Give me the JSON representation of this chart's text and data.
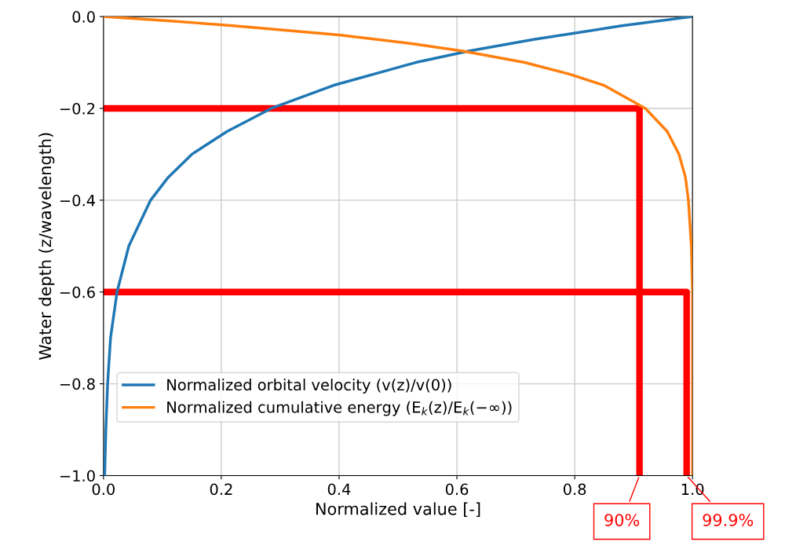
{
  "chart_data": {
    "type": "line",
    "xlabel": "Normalized value [-]",
    "ylabel": "Water depth (z/wavelength)",
    "xlim": [
      0.0,
      1.0
    ],
    "ylim": [
      -1.0,
      0.0
    ],
    "xticks": [
      {
        "value": 0,
        "label": "0.0"
      },
      {
        "value": 0.2,
        "label": "0.2"
      },
      {
        "value": 0.4,
        "label": "0.4"
      },
      {
        "value": 0.6,
        "label": "0.6"
      },
      {
        "value": 0.8,
        "label": "0.8"
      },
      {
        "value": 1,
        "label": "1.0"
      }
    ],
    "yticks": [
      {
        "value": -1,
        "label": "−1.0"
      },
      {
        "value": -0.8,
        "label": "−0.8"
      },
      {
        "value": -0.6,
        "label": "−0.6"
      },
      {
        "value": -0.4,
        "label": "−0.4"
      },
      {
        "value": -0.2,
        "label": "−0.2"
      },
      {
        "value": 0,
        "label": "0.0"
      }
    ],
    "grid": true,
    "legend": "bottom left",
    "line_style": "solid",
    "series": [
      {
        "name": "Normalized orbital velocity (v(z)/v(0))",
        "color": "#1f77b4",
        "x": [
          1.0,
          0.88,
          0.73,
          0.62,
          0.53,
          0.39,
          0.285,
          0.21,
          0.15,
          0.11,
          0.08,
          0.043,
          0.023,
          0.012,
          0.007,
          0.004,
          0.002
        ],
        "values": [
          0.0,
          -0.02,
          -0.05,
          -0.075,
          -0.1,
          -0.15,
          -0.2,
          -0.25,
          -0.3,
          -0.35,
          -0.4,
          -0.5,
          -0.6,
          -0.7,
          -0.8,
          -0.9,
          -1.0
        ]
      },
      {
        "name": "Normalized cumulative energy (E$_{k}$(z)/E$_{k}$(−∞))",
        "color": "#ff7f0e",
        "x": [
          0.0,
          0.12,
          0.22,
          0.4,
          0.53,
          0.61,
          0.715,
          0.79,
          0.85,
          0.92,
          0.957,
          0.977,
          0.988,
          0.993,
          0.998,
          1.0,
          1.0
        ],
        "values": [
          0.0,
          -0.01,
          -0.02,
          -0.04,
          -0.06,
          -0.075,
          -0.1,
          -0.125,
          -0.15,
          -0.2,
          -0.25,
          -0.3,
          -0.35,
          -0.4,
          -0.5,
          -0.6,
          -1.0
        ]
      },
      {
        "color": "#ff0000",
        "x": [
          0.0,
          0.91,
          0.91
        ],
        "values": [
          -0.2,
          -0.2,
          -1.0
        ]
      },
      {
        "color": "#ff0000",
        "x": [
          0.0,
          0.99,
          0.99
        ],
        "values": [
          -0.6,
          -0.6,
          -1.0
        ]
      }
    ],
    "annotations": [
      {
        "text": "90%",
        "x": 0.91,
        "y": -1.0
      },
      {
        "text": "99.9%",
        "x": 0.99,
        "y": -1.0
      }
    ]
  }
}
